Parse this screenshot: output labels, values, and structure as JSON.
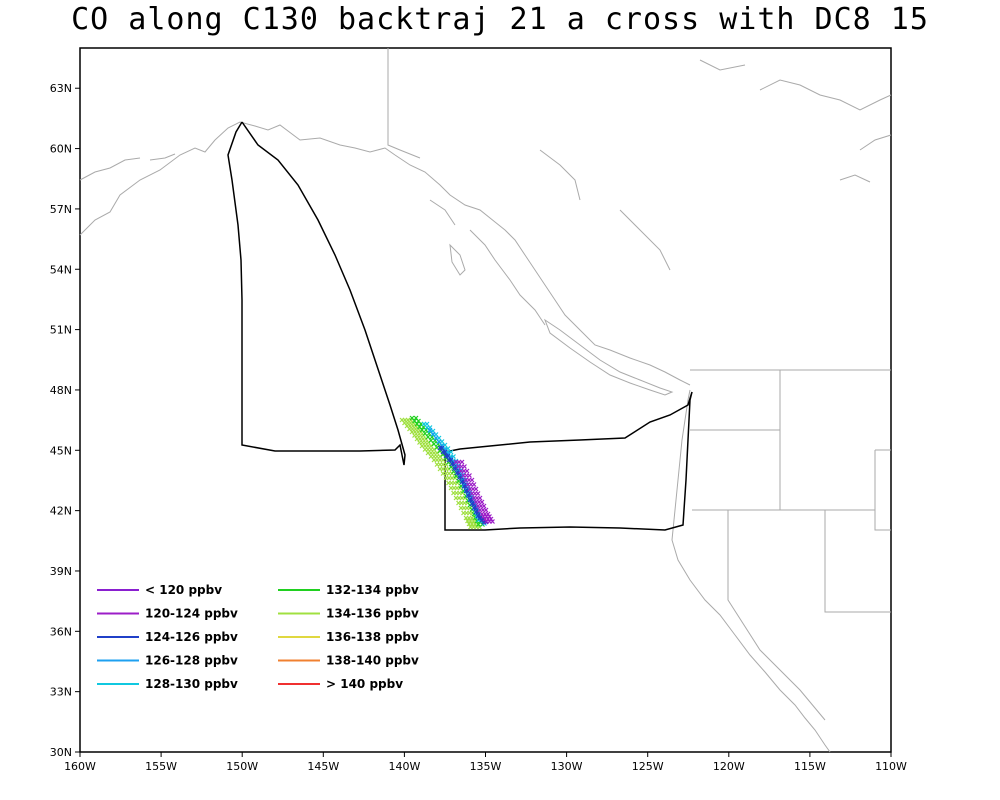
{
  "title": "CO along C130 backtraj 21 a cross with DC8 15",
  "map": {
    "lon_range": [
      -160,
      -110
    ],
    "lat_range": [
      30,
      65
    ],
    "x_ticks": [
      {
        "value": -160,
        "label": "160W"
      },
      {
        "value": -155,
        "label": "155W"
      },
      {
        "value": -150,
        "label": "150W"
      },
      {
        "value": -145,
        "label": "145W"
      },
      {
        "value": -140,
        "label": "140W"
      },
      {
        "value": -135,
        "label": "135W"
      },
      {
        "value": -130,
        "label": "130W"
      },
      {
        "value": -125,
        "label": "125W"
      },
      {
        "value": -120,
        "label": "120W"
      },
      {
        "value": -115,
        "label": "115W"
      },
      {
        "value": -110,
        "label": "110W"
      }
    ],
    "y_ticks": [
      {
        "value": 30,
        "label": "30N"
      },
      {
        "value": 33,
        "label": "33N"
      },
      {
        "value": 36,
        "label": "36N"
      },
      {
        "value": 39,
        "label": "39N"
      },
      {
        "value": 42,
        "label": "42N"
      },
      {
        "value": 45,
        "label": "45N"
      },
      {
        "value": 48,
        "label": "48N"
      },
      {
        "value": 51,
        "label": "51N"
      },
      {
        "value": 54,
        "label": "54N"
      },
      {
        "value": 57,
        "label": "57N"
      },
      {
        "value": 60,
        "label": "60N"
      },
      {
        "value": 63,
        "label": "63N"
      }
    ],
    "coast_color": "#aaaaaa",
    "flight_track_color": "#000000"
  },
  "legend": [
    {
      "label": "< 120 ppbv",
      "color": "#8a1fd0"
    },
    {
      "label": "120-124 ppbv",
      "color": "#9c1ec8"
    },
    {
      "label": "124-126 ppbv",
      "color": "#2040c8"
    },
    {
      "label": "126-128 ppbv",
      "color": "#1ea0f0"
    },
    {
      "label": "128-130 ppbv",
      "color": "#10c8e0"
    },
    {
      "label": "132-134 ppbv",
      "color": "#20d020"
    },
    {
      "label": "134-136 ppbv",
      "color": "#a0e040"
    },
    {
      "label": "136-138 ppbv",
      "color": "#e0d840"
    },
    {
      "label": "138-140 ppbv",
      "color": "#f08030"
    },
    {
      "label": "> 140 ppbv",
      "color": "#f03030"
    }
  ]
}
